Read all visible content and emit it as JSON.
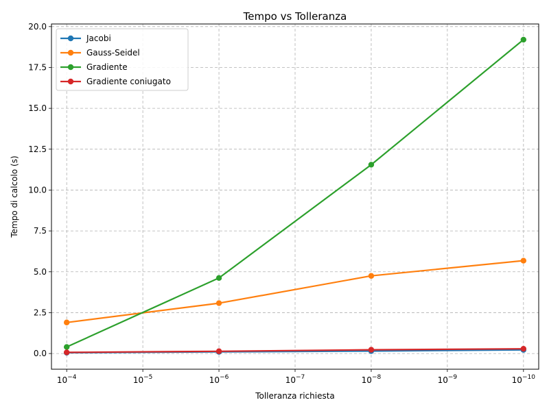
{
  "chart_data": {
    "type": "line",
    "title": "Tempo vs Tolleranza",
    "xlabel": "Tolleranza richiesta",
    "ylabel": "Tempo di calcolo (s)",
    "x_scale": "log",
    "x_reversed": true,
    "x": [
      0.0001,
      1e-06,
      1e-08,
      1e-10
    ],
    "xlim": [
      0.0001585,
      6.31e-11
    ],
    "ylim": [
      -0.96,
      20.16
    ],
    "x_ticks": [
      {
        "value": 0.0001,
        "base": "10",
        "exp": "−4"
      },
      {
        "value": 1e-05,
        "base": "10",
        "exp": "−5"
      },
      {
        "value": 1e-06,
        "base": "10",
        "exp": "−6"
      },
      {
        "value": 1e-07,
        "base": "10",
        "exp": "−7"
      },
      {
        "value": 1e-08,
        "base": "10",
        "exp": "−8"
      },
      {
        "value": 1e-09,
        "base": "10",
        "exp": "−9"
      },
      {
        "value": 1e-10,
        "base": "10",
        "exp": "−10"
      }
    ],
    "y_ticks": [
      {
        "value": 0,
        "label": "0.0"
      },
      {
        "value": 2.5,
        "label": "2.5"
      },
      {
        "value": 5,
        "label": "5.0"
      },
      {
        "value": 7.5,
        "label": "7.5"
      },
      {
        "value": 10,
        "label": "10.0"
      },
      {
        "value": 12.5,
        "label": "12.5"
      },
      {
        "value": 15,
        "label": "15.0"
      },
      {
        "value": 17.5,
        "label": "17.5"
      },
      {
        "value": 20,
        "label": "20.0"
      }
    ],
    "grid": true,
    "legend_position": "top-left",
    "series": [
      {
        "name": "Jacobi",
        "color": "#1f77b4",
        "values": [
          0.05,
          0.1,
          0.15,
          0.22
        ]
      },
      {
        "name": "Gauss-Seidel",
        "color": "#ff7f0e",
        "values": [
          1.9,
          3.08,
          4.75,
          5.68
        ]
      },
      {
        "name": "Gradiente",
        "color": "#2ca02c",
        "values": [
          0.4,
          4.62,
          11.55,
          19.2
        ]
      },
      {
        "name": "Gradiente coniugato",
        "color": "#d62728",
        "values": [
          0.07,
          0.14,
          0.23,
          0.29
        ]
      }
    ]
  }
}
